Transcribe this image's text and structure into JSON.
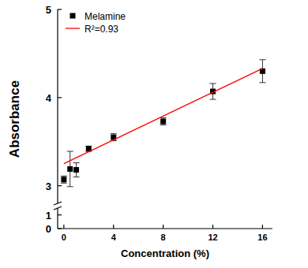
{
  "chart_data": {
    "type": "scatter",
    "x_label": "Concentration (%)",
    "y_label": "Absorbance",
    "xlim": [
      -0.5,
      16.8
    ],
    "xticks": [
      0,
      4,
      8,
      12,
      16
    ],
    "ylim": [
      0,
      5
    ],
    "yticks": [
      0,
      1,
      3,
      4,
      5
    ],
    "ybreak": [
      1.5,
      2.8
    ],
    "legend": "upper-left",
    "series": [
      {
        "name": "Melamine",
        "type": "scatter",
        "color": "#000000",
        "marker": "square",
        "x": [
          0,
          0.5,
          1,
          2,
          4,
          8,
          12,
          16
        ],
        "values": [
          3.07,
          3.19,
          3.18,
          3.42,
          3.55,
          3.73,
          4.07,
          4.3
        ],
        "errors": [
          0.04,
          0.2,
          0.08,
          0.03,
          0.04,
          0.04,
          0.09,
          0.13
        ]
      },
      {
        "name": "R²=0.93",
        "type": "line",
        "color": "#ff0000",
        "line_style": "solid",
        "x": [
          0,
          16
        ],
        "values": [
          3.25,
          4.33
        ]
      }
    ]
  }
}
